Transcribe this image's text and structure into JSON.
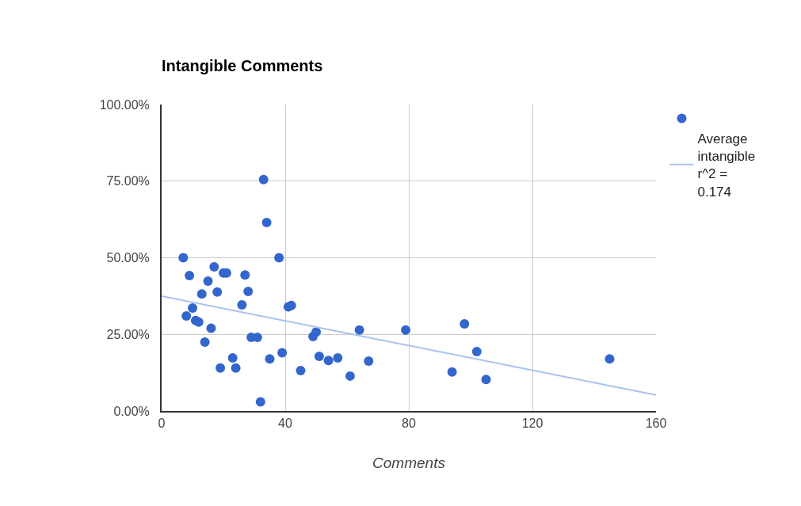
{
  "chart_data": {
    "type": "scatter",
    "title": "Intangible Comments",
    "xlabel": "Comments",
    "xlim": [
      0,
      160
    ],
    "xticks": [
      0,
      40,
      80,
      120,
      160
    ],
    "ylim": [
      0,
      100
    ],
    "yticks": [
      {
        "value": 0,
        "label": "0.00%"
      },
      {
        "value": 25,
        "label": "25.00%"
      },
      {
        "value": 50,
        "label": "50.00%"
      },
      {
        "value": 75,
        "label": "75.00%"
      },
      {
        "value": 100,
        "label": "100.00%"
      }
    ],
    "grid": true,
    "legend": "top right",
    "series": [
      {
        "marker": "circle",
        "color": "#3366cc",
        "x": [
          7,
          9,
          8,
          10,
          11,
          12,
          13,
          14,
          15,
          16,
          17,
          18,
          19,
          20,
          21,
          23,
          24,
          26,
          27,
          28,
          29,
          31,
          32,
          33,
          34,
          35,
          38,
          39,
          41,
          42,
          45,
          49,
          50,
          51,
          54,
          57,
          61,
          64,
          67,
          79,
          94,
          98,
          102,
          105,
          145
        ],
        "values": [
          50,
          44.2,
          31,
          33.6,
          29.5,
          29,
          38.2,
          22.5,
          42.4,
          27,
          47,
          38.8,
          14,
          45,
          45,
          17.3,
          14,
          34.6,
          44.4,
          39,
          24,
          24,
          3,
          75.5,
          61.5,
          17,
          50,
          19,
          34,
          34.4,
          13.2,
          24.3,
          25.8,
          17.8,
          16.5,
          17.3,
          11.4,
          26.4,
          16.3,
          26.4,
          12.7,
          28.4,
          19.4,
          10.3,
          17
        ]
      },
      {
        "type": "line",
        "name": "Average intangible r^2 = 0.174",
        "color": "#a9c1ee",
        "x": [
          0,
          160
        ],
        "values": [
          37.5,
          5.2
        ]
      }
    ]
  }
}
